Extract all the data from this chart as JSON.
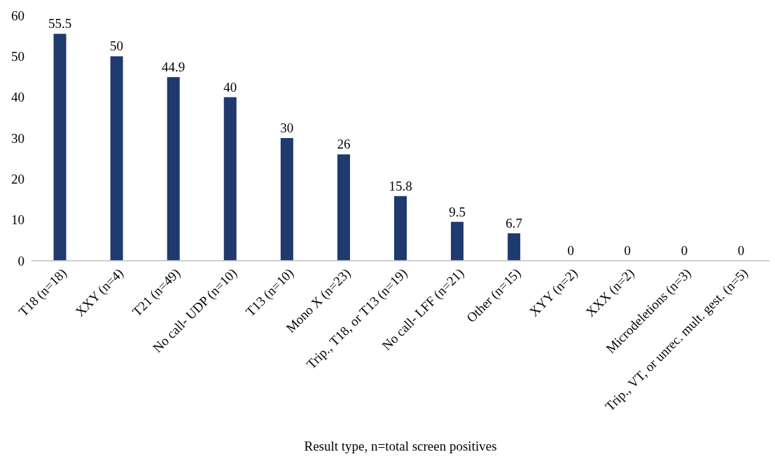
{
  "chart_data": {
    "type": "bar",
    "xlabel": "Result type, n=total screen positives",
    "categories": [
      "T18 (n=18)",
      "XXY (n=4)",
      "T21 (n=49)",
      "No call- UDP (n=10)",
      "T13 (n=10)",
      "Mono X (n=23)",
      "Trip., T18, or T13 (n=19)",
      "No call- LFF (n=21)",
      "Other (n=15)",
      "XYY (n=2)",
      "XXX (n=2)",
      "Microdeletions (n=3)",
      "Trip., VT, or unrec. mult. gest. (n=5)"
    ],
    "values": [
      55.5,
      50,
      44.9,
      40,
      30,
      26,
      15.8,
      9.5,
      6.7,
      0,
      0,
      0,
      0
    ],
    "color": "#1f3a6e",
    "ylim": [
      0,
      60
    ],
    "yticks": [
      0,
      10,
      20,
      30,
      40,
      50,
      60
    ],
    "data_labels": true
  }
}
